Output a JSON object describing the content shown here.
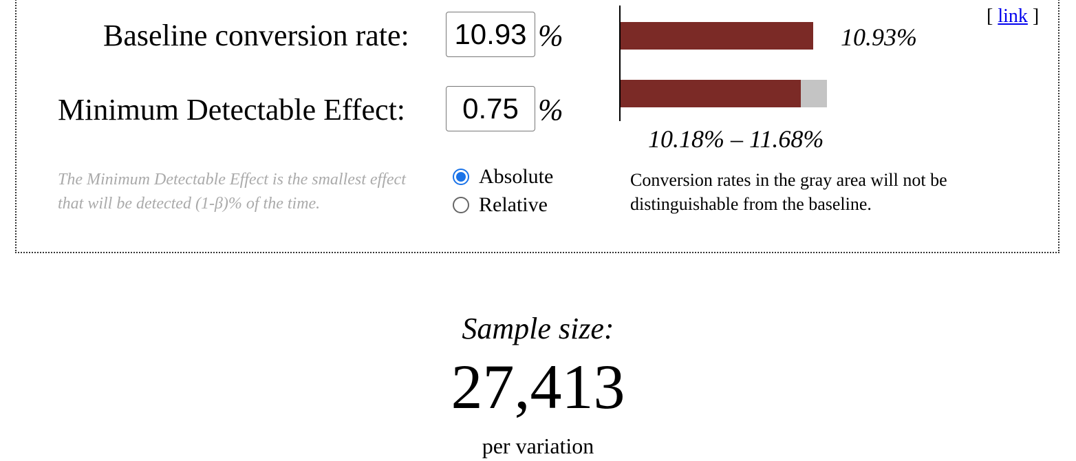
{
  "form": {
    "baseline_label": "Baseline conversion rate:",
    "baseline_value": "10.93",
    "mde_label": "Minimum Detectable Effect:",
    "mde_value": "0.75",
    "percent_symbol": "%",
    "help_text": "The Minimum Detectable Effect is the smallest effect that will be detected (1-β)% of the time.",
    "mode_options": [
      {
        "label": "Absolute",
        "checked": true
      },
      {
        "label": "Relative",
        "checked": false
      }
    ]
  },
  "visual": {
    "baseline_bar_label": "10.93%",
    "range_label": "10.18% – 11.68%",
    "baseline_rate": 10.93,
    "range_low": 10.18,
    "range_high": 11.68,
    "note": "Conversion rates in the gray area will not be distinguishable from the baseline.",
    "colors": {
      "bar": "#7b2a26",
      "gray_area": "#c4c4c4"
    }
  },
  "link": {
    "open": "[",
    "text": "link",
    "close": "]"
  },
  "result": {
    "title": "Sample size:",
    "value": "27,413",
    "unit": "per variation"
  }
}
